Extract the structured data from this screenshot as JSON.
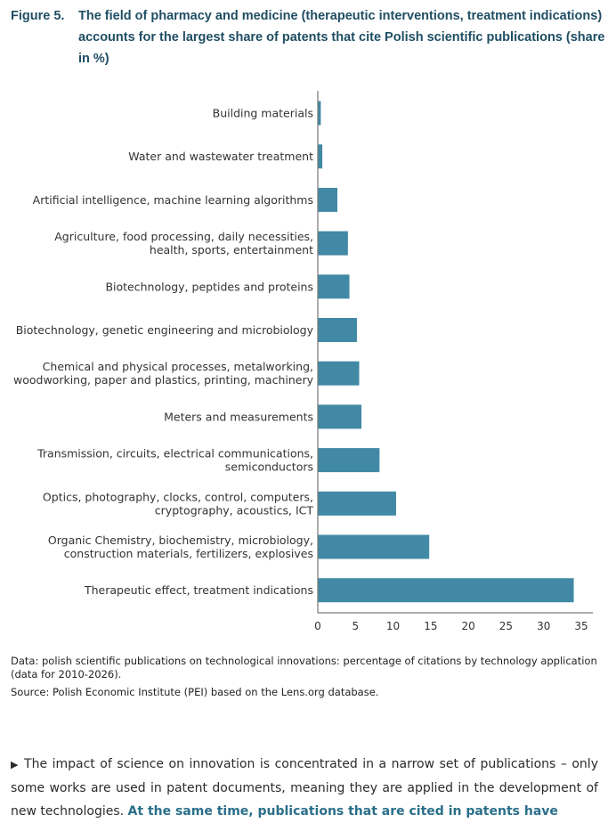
{
  "figure": {
    "number": "Figure 5.",
    "title": "The field of pharmacy and medicine (therapeutic interventions, treatment indications) accounts for the largest share of patents that cite Polish scientific publications (share in %)"
  },
  "chart_data": {
    "type": "bar",
    "orientation": "horizontal",
    "categories": [
      [
        "Building materials"
      ],
      [
        "Water and wastewater treatment"
      ],
      [
        "Artificial intelligence, machine learning algorithms"
      ],
      [
        "Agriculture, food processing, daily necessities,",
        "health, sports, entertainment"
      ],
      [
        "Biotechnology, peptides and proteins"
      ],
      [
        "Biotechnology, genetic engineering and microbiology"
      ],
      [
        "Chemical and physical processes, metalworking,",
        "woodworking, paper and plastics, printing, machinery"
      ],
      [
        "Meters and measurements"
      ],
      [
        "Transmission, circuits, electrical communications,",
        "semiconductors"
      ],
      [
        "Optics, photography, clocks, control, computers,",
        "cryptography, acoustics, ICT"
      ],
      [
        "Organic Chemistry, biochemistry, microbiology,",
        "construction materials, fertilizers, explosives"
      ],
      [
        "Therapeutic effect, treatment indications"
      ]
    ],
    "values": [
      0.4,
      0.6,
      2.6,
      4.0,
      4.2,
      5.2,
      5.5,
      5.8,
      8.2,
      10.4,
      14.8,
      34.0
    ],
    "xlim": [
      0,
      35
    ],
    "xticks": [
      "0",
      "5",
      "10",
      "15",
      "20",
      "25",
      "30",
      "35"
    ],
    "xlabel": "",
    "ylabel": "",
    "grid": false,
    "bar_color": "#4189a5"
  },
  "notes": {
    "data": "Data: polish scientific publications on technological innovations: percentage of citations by technology application (data for 2010-2026).",
    "source": "Source: Polish Economic Institute (PEI) based on the Lens.org database."
  },
  "paragraph": {
    "marker": "▶",
    "text": " The impact of science on innovation is concentrated in a narrow set of publications – only some works are used in patent documents, meaning they are applied in the development of new technologies. ",
    "bold": "At the same time, publications that are cited in patents have"
  }
}
